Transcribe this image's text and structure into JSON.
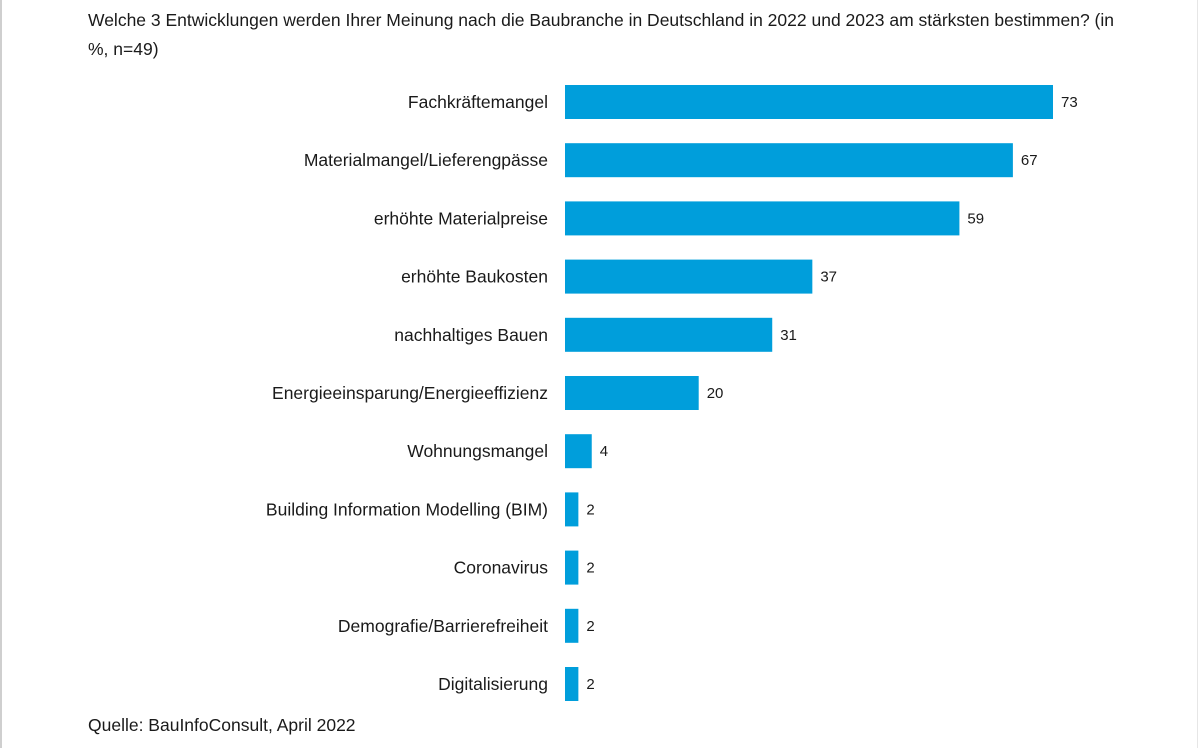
{
  "chart_data": {
    "type": "bar",
    "orientation": "horizontal",
    "title": "Welche 3 Entwicklungen werden Ihrer Meinung nach die Baubranche in Deutschland in 2022 und 2023 am stärksten bestimmen? (in %, n=49)",
    "categories": [
      "Fachkräftemangel",
      "Materialmangel/Lieferengpässe",
      "erhöhte Materialpreise",
      "erhöhte Baukosten",
      "nachhaltiges Bauen",
      "Energieeinsparung/Energieeffizienz",
      "Wohnungsmangel",
      "Building Information Modelling (BIM)",
      "Coronavirus",
      "Demografie/Barrierefreiheit",
      "Digitalisierung"
    ],
    "values": [
      73,
      67,
      59,
      37,
      31,
      20,
      4,
      2,
      2,
      2,
      2
    ],
    "xlabel": "",
    "ylabel": "",
    "xlim": [
      0,
      73
    ],
    "grid": false,
    "source": "Quelle: BauInfoConsult, April 2022",
    "bar_color": "#009edb"
  }
}
